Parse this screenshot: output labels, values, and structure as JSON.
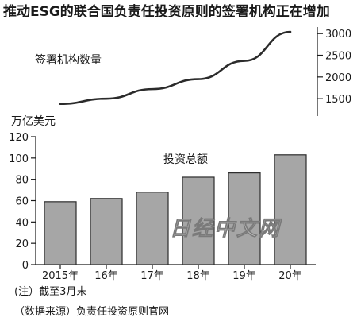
{
  "title": "推动ESG的联合国负责任投资原则的签署机构正在增加",
  "chart_data": [
    {
      "type": "line",
      "label": "签署机构数量",
      "x": [
        "2015年",
        "16年",
        "17年",
        "18年",
        "19年",
        "20年"
      ],
      "values": [
        1380,
        1500,
        1720,
        1950,
        2370,
        3040
      ],
      "ylim": [
        1100,
        3150
      ],
      "yticks": [
        1500,
        2000,
        2500,
        3000
      ],
      "axis_side": "right",
      "line_color": "#2b2b2b"
    },
    {
      "type": "bar",
      "label": "投资总额",
      "ylabel": "万亿美元",
      "categories": [
        "2015年",
        "16年",
        "17年",
        "18年",
        "19年",
        "20年"
      ],
      "values": [
        59,
        62,
        68,
        82,
        86,
        103
      ],
      "ylim": [
        0,
        120
      ],
      "yticks": [
        0,
        20,
        40,
        60,
        80,
        100,
        120
      ],
      "bar_color": "#a6a6a6",
      "bar_border": "#2b2b2b"
    }
  ],
  "notes": {
    "note1": "(注）截至3月末",
    "note2": "（数据来源）负责任投资原则官网"
  },
  "watermark": "日经中文网"
}
